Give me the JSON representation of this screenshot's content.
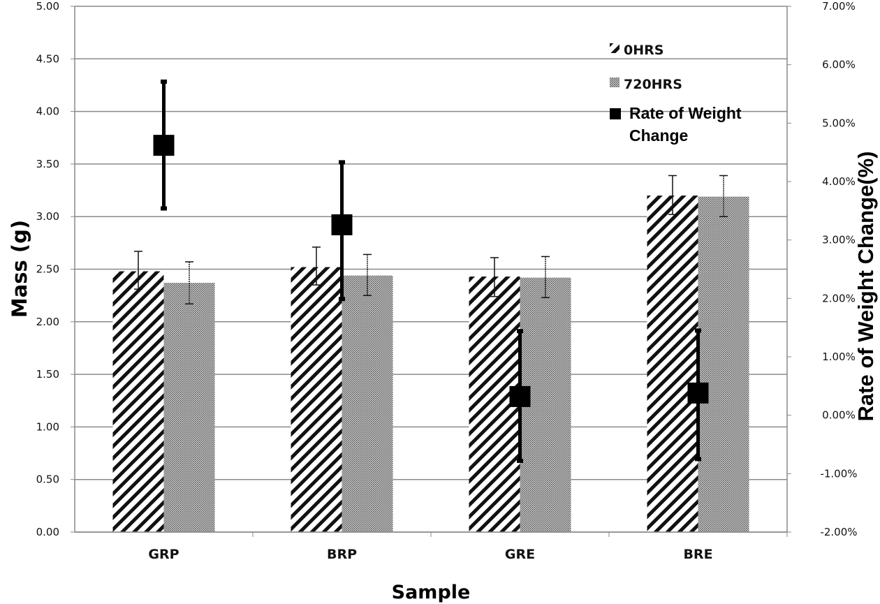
{
  "chart_data": {
    "type": "bar",
    "title": "",
    "xlabel": "Sample",
    "ylabel": "Mass (g)",
    "y2label": "Rate of Weight Change(%)",
    "categories": [
      "GRP",
      "BRP",
      "GRE",
      "BRE"
    ],
    "ylim": [
      0,
      5
    ],
    "yticks": [
      "0.00",
      "0.50",
      "1.00",
      "1.50",
      "2.00",
      "2.50",
      "3.00",
      "3.50",
      "4.00",
      "4.50",
      "5.00"
    ],
    "y2lim": [
      -2,
      7
    ],
    "y2ticks": [
      "-2.00%",
      "-1.00%",
      "0.00%",
      "1.00%",
      "2.00%",
      "3.00%",
      "4.00%",
      "5.00%",
      "6.00%",
      "7.00%"
    ],
    "grid": true,
    "legend_position": "top-right",
    "series": [
      {
        "name": "0HRS",
        "kind": "bar",
        "pattern": "diagonal-hatch",
        "axis": "left",
        "values": [
          2.48,
          2.52,
          2.43,
          3.2
        ],
        "err_low": [
          2.31,
          2.35,
          2.24,
          3.02
        ],
        "err_high": [
          2.67,
          2.71,
          2.61,
          3.39
        ]
      },
      {
        "name": "720HRS",
        "kind": "bar",
        "pattern": "dense-dots",
        "axis": "left",
        "values": [
          2.37,
          2.44,
          2.42,
          3.19
        ],
        "err_low": [
          2.17,
          2.25,
          2.23,
          3.0
        ],
        "err_high": [
          2.57,
          2.64,
          2.62,
          3.39
        ]
      },
      {
        "name": "Rate of Weight Change",
        "kind": "marker",
        "axis": "right",
        "values": [
          4.62,
          3.26,
          0.32,
          0.38
        ],
        "err_low": [
          3.54,
          1.99,
          -0.78,
          -0.75
        ],
        "err_high": [
          5.71,
          4.33,
          1.44,
          1.45
        ]
      }
    ],
    "legend_lines": [
      "Rate of Weight",
      "Change"
    ]
  }
}
